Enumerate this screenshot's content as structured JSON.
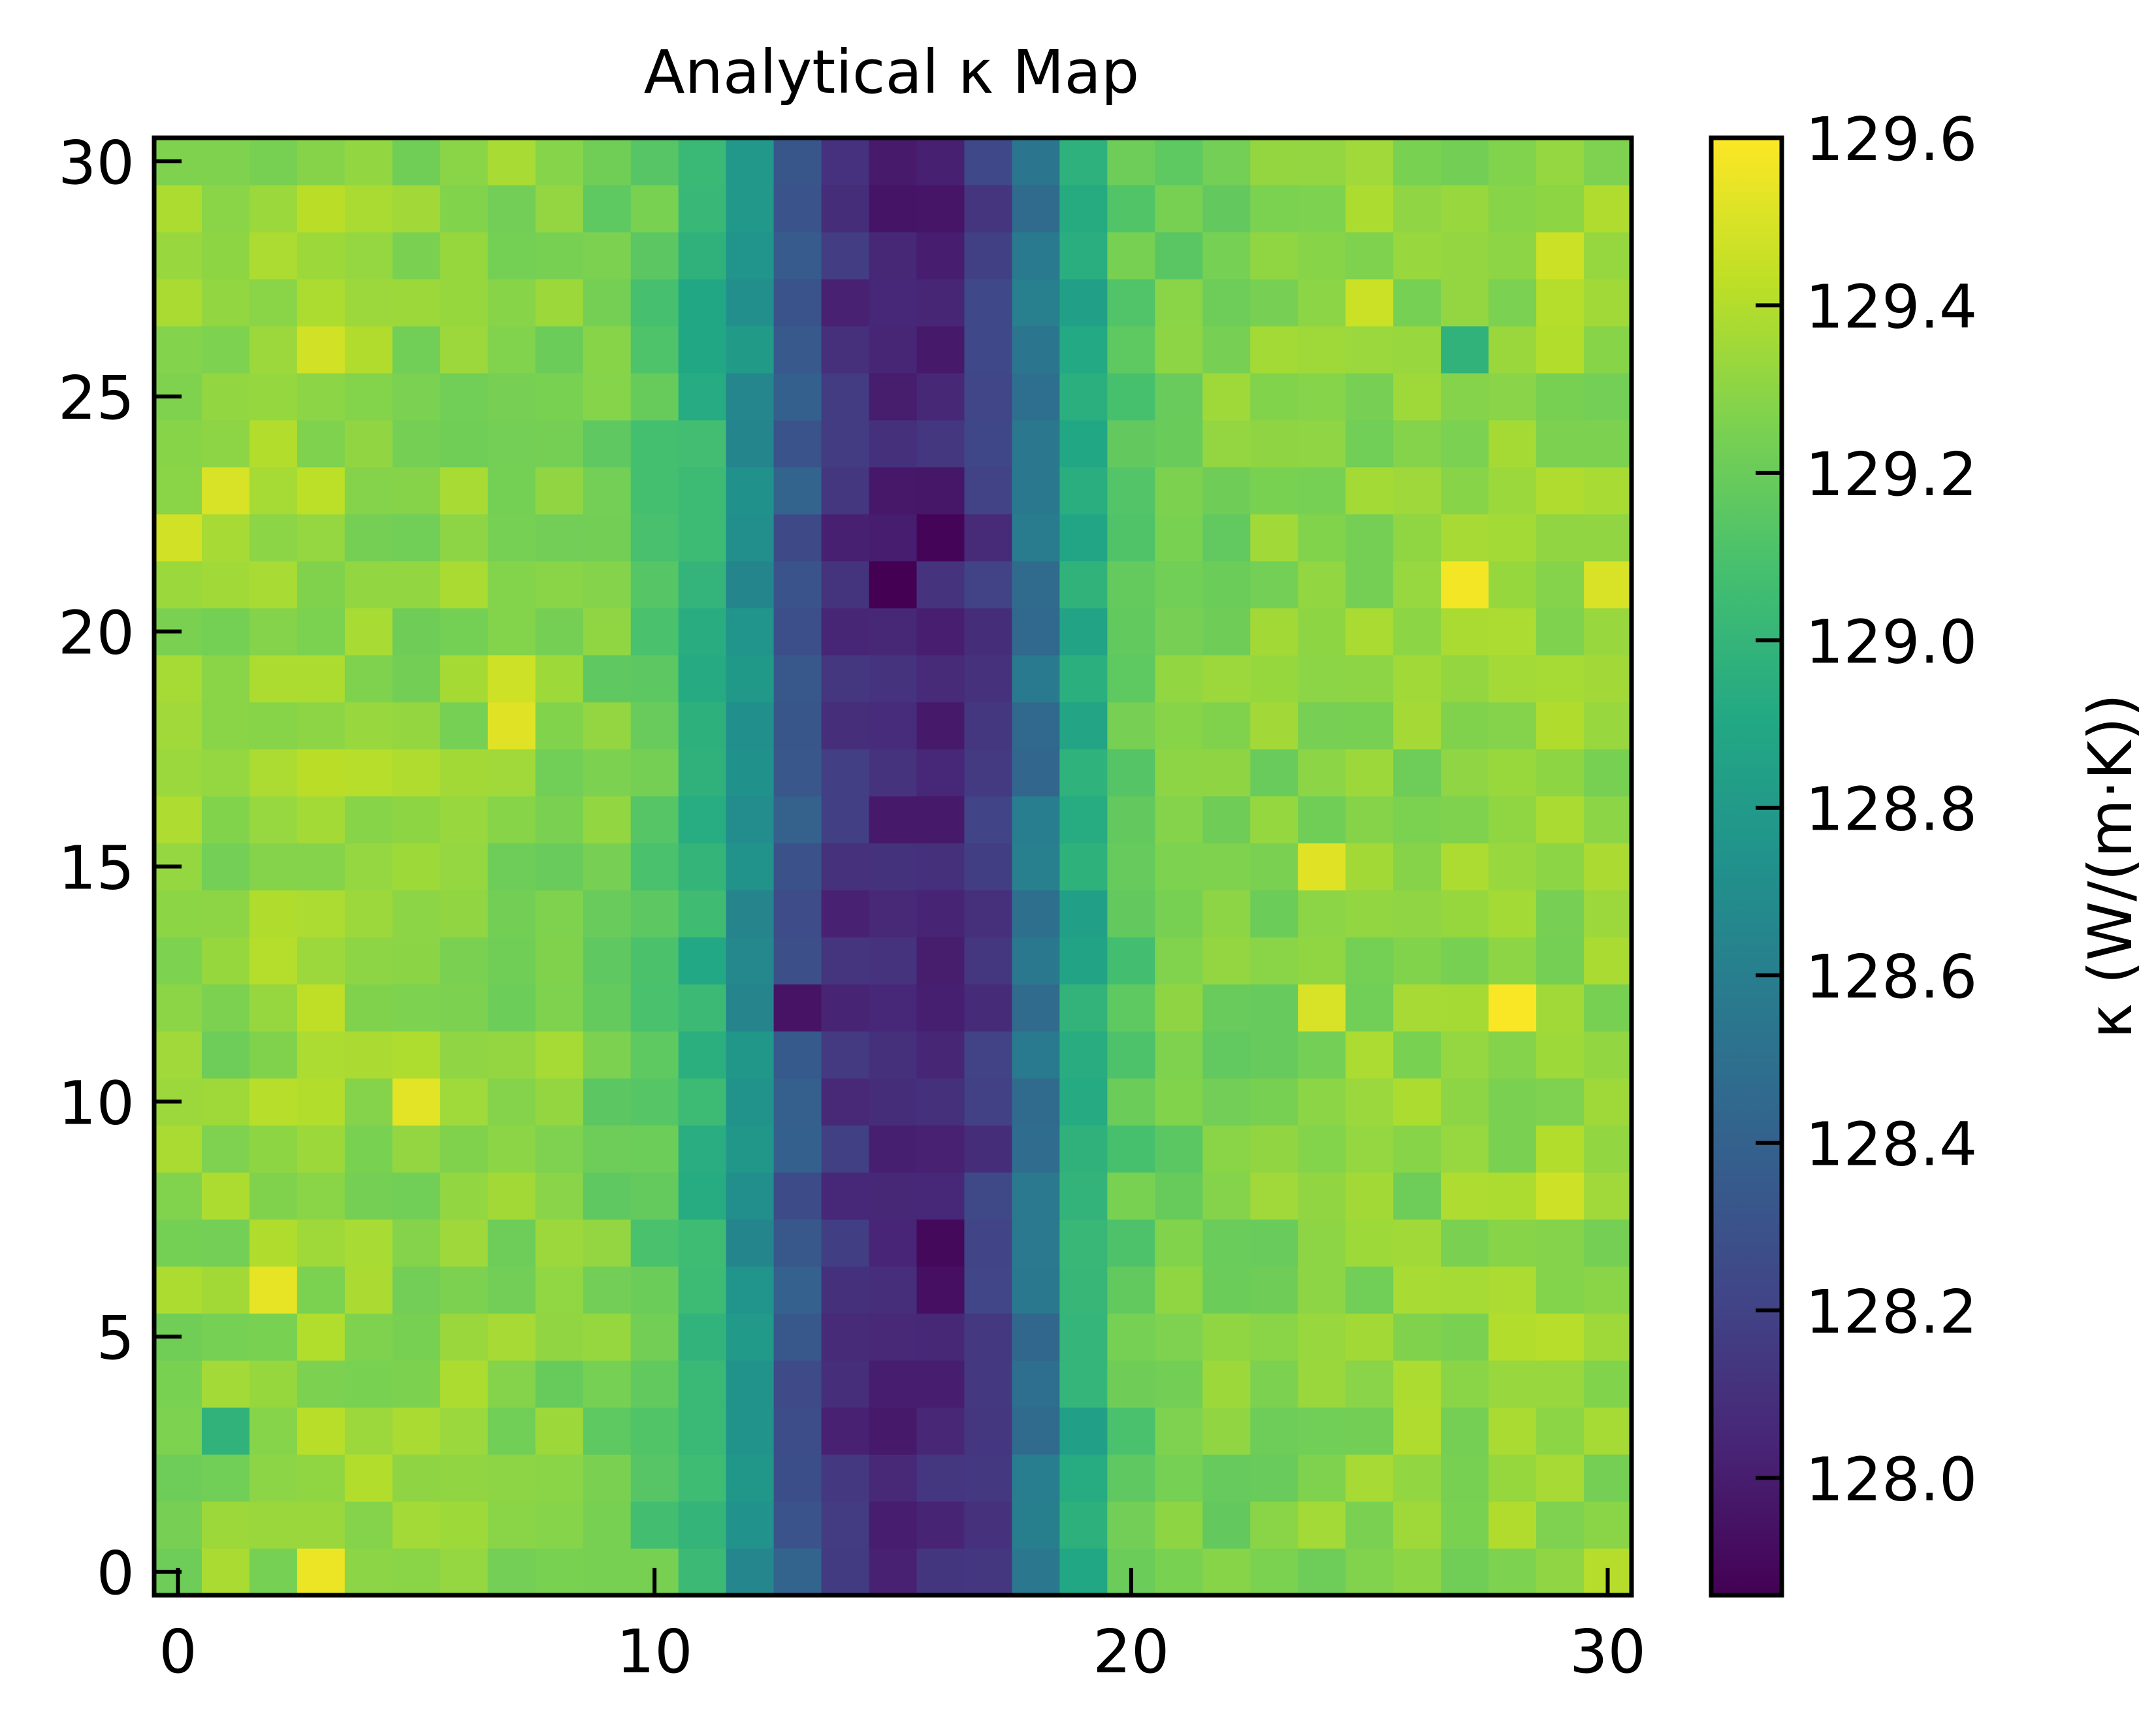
{
  "chart_data": {
    "type": "heatmap",
    "title": "Analytical κ Map",
    "xlabel": "",
    "ylabel": "",
    "x_ticks": [
      0,
      10,
      20,
      30
    ],
    "y_ticks": [
      0,
      5,
      10,
      15,
      20,
      25,
      30
    ],
    "x_tick_labels": [
      "0",
      "10",
      "20",
      "30"
    ],
    "y_tick_labels": [
      "0",
      "5",
      "10",
      "15",
      "20",
      "25",
      "30"
    ],
    "xlim": [
      -0.5,
      30.5
    ],
    "ylim": [
      -0.5,
      30.5
    ],
    "grid_size": 31,
    "colormap": "viridis",
    "colorbar": {
      "label": "κ (W/(m·K))",
      "vmin": 127.86,
      "vmax": 129.6,
      "ticks": [
        128.0,
        128.2,
        128.4,
        128.6,
        128.8,
        129.0,
        129.2,
        129.4,
        129.6
      ],
      "tick_labels": [
        "128.0",
        "128.2",
        "128.4",
        "128.6",
        "128.8",
        "129.0",
        "129.2",
        "129.4",
        "129.6"
      ]
    },
    "column_profile": [
      129.3,
      129.3,
      129.32,
      129.34,
      129.32,
      129.3,
      129.3,
      129.29,
      129.28,
      129.24,
      129.16,
      128.98,
      128.72,
      128.33,
      128.1,
      128.03,
      128.05,
      128.15,
      128.52,
      128.93,
      129.16,
      129.24,
      129.26,
      129.27,
      129.28,
      129.3,
      129.3,
      129.31,
      129.32,
      129.32,
      129.32
    ],
    "highlights": [
      {
        "col": 1,
        "row": 23,
        "value": 129.5
      },
      {
        "col": 0,
        "row": 22,
        "value": 129.48
      },
      {
        "col": 2,
        "row": 6,
        "value": 129.54
      },
      {
        "col": 3,
        "row": 0,
        "value": 129.55
      },
      {
        "col": 3,
        "row": 26,
        "value": 129.48
      },
      {
        "col": 5,
        "row": 10,
        "value": 129.53
      },
      {
        "col": 7,
        "row": 18,
        "value": 129.52
      },
      {
        "col": 7,
        "row": 19,
        "value": 129.47
      },
      {
        "col": 24,
        "row": 15,
        "value": 129.52
      },
      {
        "col": 24,
        "row": 12,
        "value": 129.5
      },
      {
        "col": 27,
        "row": 21,
        "value": 129.57
      },
      {
        "col": 28,
        "row": 12,
        "value": 129.59
      },
      {
        "col": 30,
        "row": 21,
        "value": 129.5
      },
      {
        "col": 29,
        "row": 8,
        "value": 129.47
      },
      {
        "col": 29,
        "row": 28,
        "value": 129.46
      },
      {
        "col": 25,
        "row": 27,
        "value": 129.46
      },
      {
        "col": 1,
        "row": 3,
        "value": 128.98
      },
      {
        "col": 27,
        "row": 26,
        "value": 128.98
      },
      {
        "col": 15,
        "row": 21,
        "value": 127.86
      },
      {
        "col": 16,
        "row": 22,
        "value": 127.88
      },
      {
        "col": 16,
        "row": 7,
        "value": 127.9
      },
      {
        "col": 16,
        "row": 6,
        "value": 127.93
      },
      {
        "col": 13,
        "row": 12,
        "value": 127.95
      },
      {
        "col": 16,
        "row": 29,
        "value": 127.96
      }
    ]
  }
}
